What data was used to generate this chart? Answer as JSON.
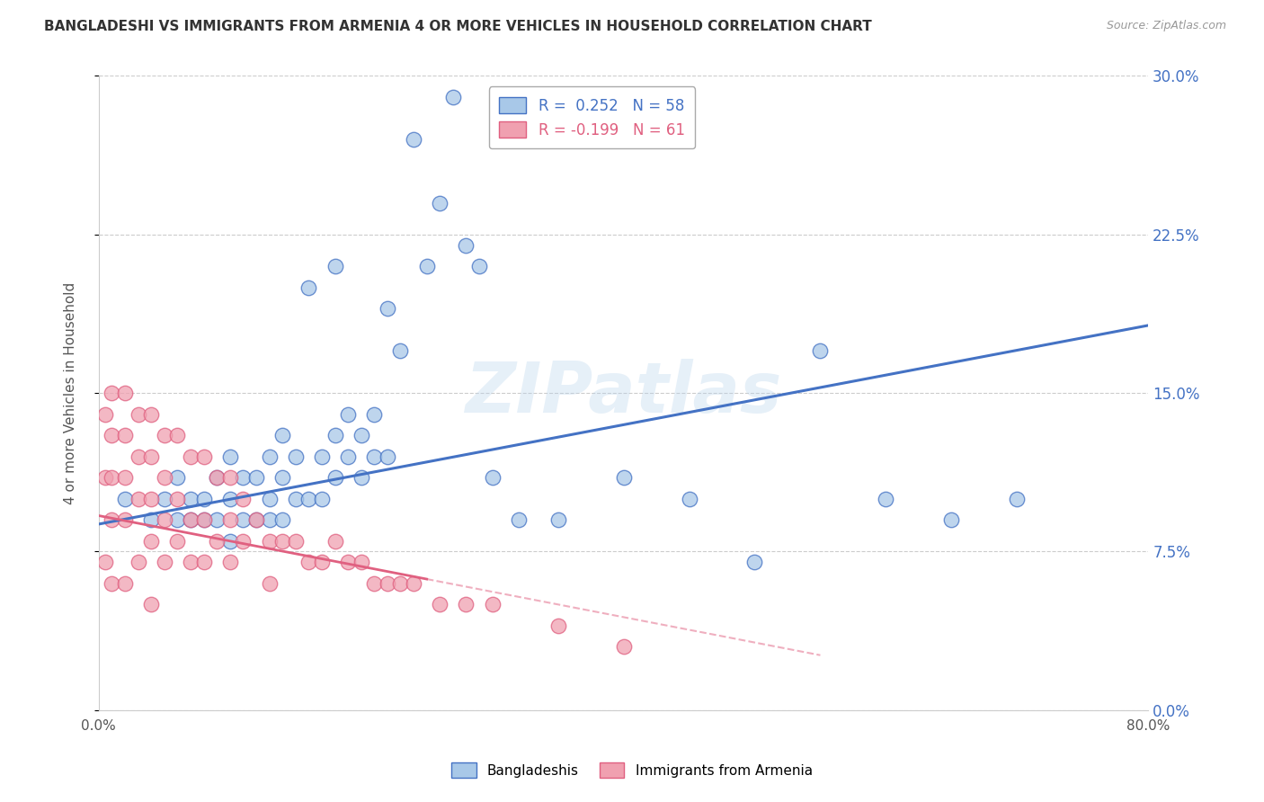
{
  "title": "BANGLADESHI VS IMMIGRANTS FROM ARMENIA 4 OR MORE VEHICLES IN HOUSEHOLD CORRELATION CHART",
  "source": "Source: ZipAtlas.com",
  "ylabel": "4 or more Vehicles in Household",
  "ytick_labels": [
    "0.0%",
    "7.5%",
    "15.0%",
    "22.5%",
    "30.0%"
  ],
  "ytick_values": [
    0.0,
    0.075,
    0.15,
    0.225,
    0.3
  ],
  "xlim": [
    0.0,
    0.8
  ],
  "ylim": [
    0.0,
    0.3
  ],
  "color_blue": "#A8C8E8",
  "color_pink": "#F0A0B0",
  "color_line_blue": "#4472C4",
  "color_line_pink": "#E06080",
  "watermark": "ZIPatlas",
  "blue_line_x0": 0.0,
  "blue_line_y0": 0.088,
  "blue_line_x1": 0.8,
  "blue_line_y1": 0.182,
  "pink_line_solid_x0": 0.0,
  "pink_line_solid_y0": 0.092,
  "pink_line_solid_x1": 0.25,
  "pink_line_solid_y1": 0.062,
  "pink_line_dash_x0": 0.25,
  "pink_line_dash_y0": 0.062,
  "pink_line_dash_x1": 0.55,
  "pink_line_dash_y1": 0.026,
  "scatter_blue_x": [
    0.02,
    0.04,
    0.05,
    0.06,
    0.06,
    0.07,
    0.07,
    0.08,
    0.08,
    0.09,
    0.09,
    0.1,
    0.1,
    0.1,
    0.11,
    0.11,
    0.12,
    0.12,
    0.13,
    0.13,
    0.13,
    0.14,
    0.14,
    0.14,
    0.15,
    0.15,
    0.16,
    0.16,
    0.17,
    0.17,
    0.18,
    0.18,
    0.18,
    0.19,
    0.19,
    0.2,
    0.2,
    0.21,
    0.21,
    0.22,
    0.22,
    0.23,
    0.24,
    0.25,
    0.26,
    0.27,
    0.28,
    0.29,
    0.3,
    0.32,
    0.35,
    0.4,
    0.45,
    0.5,
    0.55,
    0.6,
    0.65,
    0.7
  ],
  "scatter_blue_y": [
    0.1,
    0.09,
    0.1,
    0.09,
    0.11,
    0.09,
    0.1,
    0.09,
    0.1,
    0.09,
    0.11,
    0.08,
    0.1,
    0.12,
    0.09,
    0.11,
    0.09,
    0.11,
    0.09,
    0.1,
    0.12,
    0.09,
    0.11,
    0.13,
    0.1,
    0.12,
    0.1,
    0.2,
    0.1,
    0.12,
    0.11,
    0.13,
    0.21,
    0.12,
    0.14,
    0.11,
    0.13,
    0.12,
    0.14,
    0.12,
    0.19,
    0.17,
    0.27,
    0.21,
    0.24,
    0.29,
    0.22,
    0.21,
    0.11,
    0.09,
    0.09,
    0.11,
    0.1,
    0.07,
    0.17,
    0.1,
    0.09,
    0.1
  ],
  "scatter_pink_x": [
    0.005,
    0.005,
    0.005,
    0.01,
    0.01,
    0.01,
    0.01,
    0.01,
    0.02,
    0.02,
    0.02,
    0.02,
    0.02,
    0.03,
    0.03,
    0.03,
    0.03,
    0.04,
    0.04,
    0.04,
    0.04,
    0.04,
    0.05,
    0.05,
    0.05,
    0.05,
    0.06,
    0.06,
    0.06,
    0.07,
    0.07,
    0.07,
    0.08,
    0.08,
    0.08,
    0.09,
    0.09,
    0.1,
    0.1,
    0.1,
    0.11,
    0.11,
    0.12,
    0.13,
    0.13,
    0.14,
    0.15,
    0.16,
    0.17,
    0.18,
    0.19,
    0.2,
    0.21,
    0.22,
    0.23,
    0.24,
    0.26,
    0.28,
    0.3,
    0.35,
    0.4
  ],
  "scatter_pink_y": [
    0.14,
    0.11,
    0.07,
    0.15,
    0.13,
    0.11,
    0.09,
    0.06,
    0.15,
    0.13,
    0.11,
    0.09,
    0.06,
    0.14,
    0.12,
    0.1,
    0.07,
    0.14,
    0.12,
    0.1,
    0.08,
    0.05,
    0.13,
    0.11,
    0.09,
    0.07,
    0.13,
    0.1,
    0.08,
    0.12,
    0.09,
    0.07,
    0.12,
    0.09,
    0.07,
    0.11,
    0.08,
    0.11,
    0.09,
    0.07,
    0.1,
    0.08,
    0.09,
    0.08,
    0.06,
    0.08,
    0.08,
    0.07,
    0.07,
    0.08,
    0.07,
    0.07,
    0.06,
    0.06,
    0.06,
    0.06,
    0.05,
    0.05,
    0.05,
    0.04,
    0.03
  ]
}
